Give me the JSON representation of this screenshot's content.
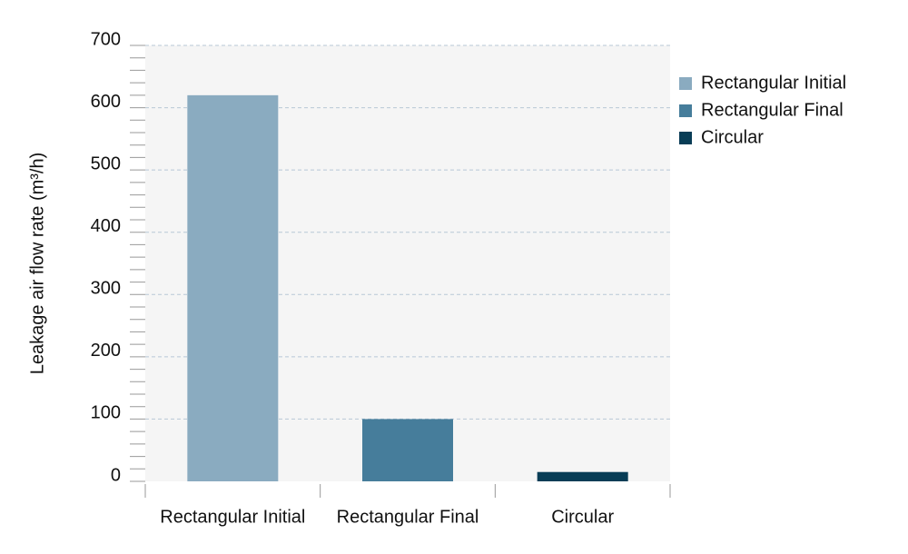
{
  "chart_data": {
    "type": "bar",
    "y_label": "Leakage air flow rate (m³/h)",
    "categories": [
      "Rectangular Initial",
      "Rectangular Final",
      "Circular"
    ],
    "values": [
      620,
      100,
      15
    ],
    "colors": [
      "#8aabc0",
      "#467d9b",
      "#083d56"
    ],
    "ylim": [
      0,
      700
    ],
    "yticks": [
      0,
      100,
      200,
      300,
      400,
      500,
      600,
      700
    ],
    "yminorticks": [
      20,
      40,
      60,
      80,
      120,
      140,
      160,
      180,
      220,
      240,
      260,
      280,
      320,
      340,
      360,
      380,
      420,
      440,
      460,
      480,
      520,
      540,
      560,
      580,
      620,
      640,
      660,
      680
    ],
    "grid": true,
    "legend": "right"
  }
}
